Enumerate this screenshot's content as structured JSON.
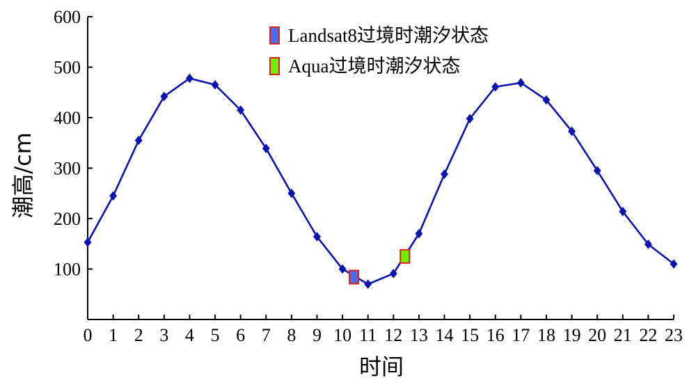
{
  "chart_data": {
    "type": "line",
    "xlabel": "时间",
    "ylabel": "潮高/cm",
    "xlim": [
      0,
      23
    ],
    "ylim": [
      0,
      600
    ],
    "x_ticks": [
      "0",
      "1",
      "2",
      "3",
      "4",
      "5",
      "6",
      "7",
      "8",
      "9",
      "10",
      "11",
      "12",
      "13",
      "14",
      "15",
      "16",
      "17",
      "18",
      "19",
      "20",
      "21",
      "22",
      "23"
    ],
    "y_ticks": [
      "600",
      "500",
      "400",
      "300",
      "200",
      "100"
    ],
    "grid": false,
    "legend_position": "top-center",
    "series": [
      {
        "x": [
          0,
          1,
          2,
          3,
          4,
          5,
          6,
          7,
          8,
          9,
          10,
          11,
          12,
          13,
          14,
          15,
          16,
          17,
          18,
          19,
          20,
          21,
          22,
          23
        ],
        "values": [
          153,
          245,
          355,
          442,
          478,
          465,
          415,
          339,
          250,
          164,
          100,
          70,
          91,
          170,
          288,
          398,
          461,
          469,
          435,
          373,
          295,
          214,
          149,
          110
        ],
        "color": "#0a12b0"
      }
    ],
    "annotations": [
      {
        "label": "Landsat8过境时潮汐状态",
        "x": 10.45,
        "y": 84,
        "color": "#4b6cf0",
        "border": "#e01e1e"
      },
      {
        "label": "Aqua过境时潮汐状态",
        "x": 12.45,
        "y": 125,
        "color": "#6ef000",
        "border": "#e01e1e"
      }
    ]
  }
}
